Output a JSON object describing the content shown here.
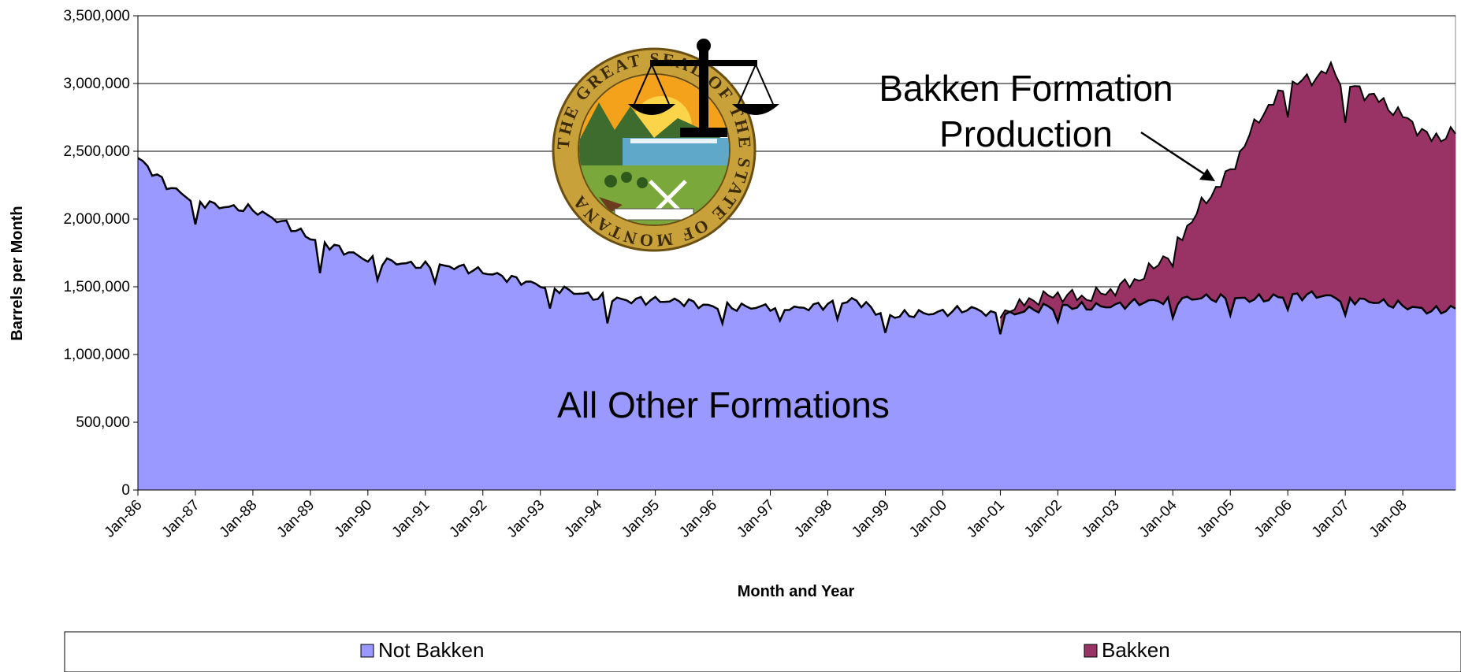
{
  "chart_data": {
    "type": "area",
    "stacked": true,
    "ylabel": "Barrels per Month",
    "xlabel": "Month and Year",
    "ylim": [
      0,
      3500000
    ],
    "yticks": [
      0,
      500000,
      1000000,
      1500000,
      2000000,
      2500000,
      3000000,
      3500000
    ],
    "ytick_labels": [
      "0",
      "500,000",
      "1,000,000",
      "1,500,000",
      "2,000,000",
      "2,500,000",
      "3,000,000",
      "3,500,000"
    ],
    "x_start": "Jan-86",
    "x_end": "Dec-08",
    "xtick_labels": [
      "Jan-86",
      "Jan-87",
      "Jan-88",
      "Jan-89",
      "Jan-90",
      "Jan-91",
      "Jan-92",
      "Jan-93",
      "Jan-94",
      "Jan-95",
      "Jan-96",
      "Jan-97",
      "Jan-98",
      "Jan-99",
      "Jan-00",
      "Jan-01",
      "Jan-02",
      "Jan-03",
      "Jan-04",
      "Jan-05",
      "Jan-06",
      "Jan-07",
      "Jan-08"
    ],
    "grid": true,
    "legend_position": "bottom",
    "annotations": [
      {
        "text_lines": [
          "Bakken Formation",
          "Production"
        ]
      },
      {
        "text_lines": [
          "All Other Formations"
        ]
      }
    ],
    "seal_text": "THE GREAT SEAL OF THE STATE OF MONTANA",
    "series": [
      {
        "name": "Not Bakken",
        "color": "#9999ff",
        "anchors": [
          [
            "Jan-86",
            2450000
          ],
          [
            "Jul-86",
            2250000
          ],
          [
            "Jan-87",
            2130000
          ],
          [
            "Jul-87",
            2090000
          ],
          [
            "Jan-88",
            2070000
          ],
          [
            "Jul-88",
            1980000
          ],
          [
            "Jan-89",
            1860000
          ],
          [
            "Jul-89",
            1780000
          ],
          [
            "Jan-90",
            1700000
          ],
          [
            "Jul-90",
            1680000
          ],
          [
            "Jan-91",
            1650000
          ],
          [
            "Jul-91",
            1650000
          ],
          [
            "Jan-92",
            1610000
          ],
          [
            "Jul-92",
            1560000
          ],
          [
            "Jan-93",
            1510000
          ],
          [
            "Jul-93",
            1470000
          ],
          [
            "Jan-94",
            1420000
          ],
          [
            "Jul-94",
            1400000
          ],
          [
            "Jan-95",
            1400000
          ],
          [
            "Jul-95",
            1390000
          ],
          [
            "Jan-96",
            1350000
          ],
          [
            "Jul-96",
            1350000
          ],
          [
            "Jan-97",
            1350000
          ],
          [
            "Jul-97",
            1340000
          ],
          [
            "Jan-98",
            1370000
          ],
          [
            "Jul-98",
            1400000
          ],
          [
            "Jan-99",
            1280000
          ],
          [
            "Jul-99",
            1300000
          ],
          [
            "Jan-00",
            1310000
          ],
          [
            "Jul-00",
            1340000
          ],
          [
            "Jan-01",
            1280000
          ],
          [
            "Jul-01",
            1330000
          ],
          [
            "Jan-02",
            1360000
          ],
          [
            "Jul-02",
            1350000
          ],
          [
            "Jan-03",
            1360000
          ],
          [
            "Jul-03",
            1390000
          ],
          [
            "Jan-04",
            1400000
          ],
          [
            "Jul-04",
            1420000
          ],
          [
            "Jan-05",
            1410000
          ],
          [
            "Jul-05",
            1410000
          ],
          [
            "Jan-06",
            1430000
          ],
          [
            "Jul-06",
            1440000
          ],
          [
            "Jan-07",
            1410000
          ],
          [
            "Jul-07",
            1390000
          ],
          [
            "Jan-08",
            1360000
          ],
          [
            "Jul-08",
            1320000
          ],
          [
            "Dec-08",
            1340000
          ]
        ],
        "dips": [
          [
            "Jan-87",
            1960000
          ],
          [
            "Mar-89",
            1600000
          ],
          [
            "Mar-90",
            1550000
          ],
          [
            "Mar-91",
            1530000
          ],
          [
            "Mar-93",
            1340000
          ],
          [
            "Mar-94",
            1230000
          ],
          [
            "Mar-96",
            1230000
          ],
          [
            "Mar-97",
            1250000
          ],
          [
            "Mar-98",
            1260000
          ],
          [
            "Jan-99",
            1160000
          ],
          [
            "Jan-01",
            1150000
          ],
          [
            "Jan-02",
            1240000
          ],
          [
            "Jan-04",
            1270000
          ],
          [
            "Jan-05",
            1290000
          ],
          [
            "Jan-06",
            1330000
          ],
          [
            "Jan-07",
            1290000
          ]
        ]
      },
      {
        "name": "Bakken",
        "color": "#993366",
        "total_anchors": [
          [
            "Jan-01",
            1280000
          ],
          [
            "Jul-01",
            1400000
          ],
          [
            "Jan-02",
            1440000
          ],
          [
            "Jul-02",
            1420000
          ],
          [
            "Jan-03",
            1480000
          ],
          [
            "Jul-03",
            1580000
          ],
          [
            "Jan-04",
            1780000
          ],
          [
            "Jul-04",
            2100000
          ],
          [
            "Jan-05",
            2350000
          ],
          [
            "Jul-05",
            2750000
          ],
          [
            "Jan-06",
            2980000
          ],
          [
            "Jul-06",
            3050000
          ],
          [
            "Oct-06",
            3110000
          ],
          [
            "Jan-07",
            3000000
          ],
          [
            "Jul-07",
            2900000
          ],
          [
            "Jan-08",
            2760000
          ],
          [
            "Jul-08",
            2590000
          ],
          [
            "Dec-08",
            2640000
          ]
        ],
        "total_dips": [
          [
            "Jan-04",
            1650000
          ],
          [
            "Jan-06",
            2750000
          ],
          [
            "Jan-07",
            2710000
          ]
        ]
      }
    ]
  }
}
